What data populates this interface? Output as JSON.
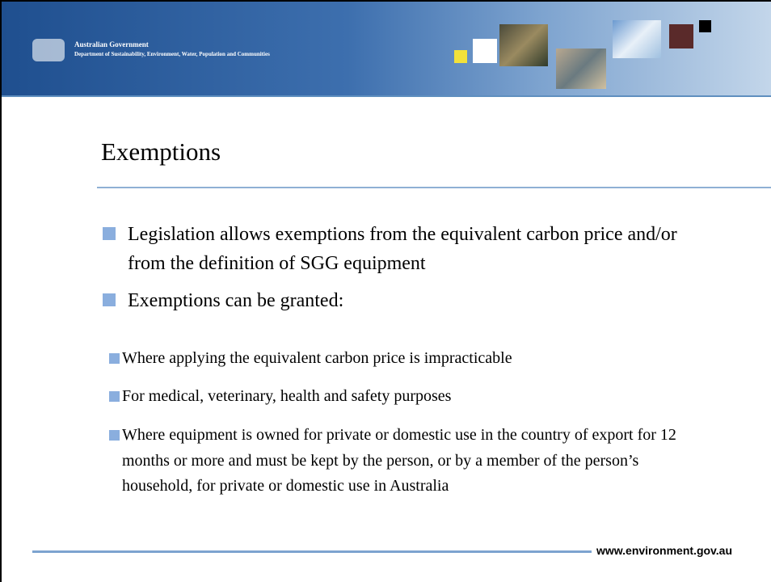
{
  "header": {
    "organisation": "Australian Government",
    "department": "Department of Sustainability, Environment, Water, Population and Communities"
  },
  "title": "Exemptions",
  "bullets": [
    {
      "text": "Legislation allows exemptions from the equivalent carbon price and/or from the definition of SGG equipment"
    },
    {
      "text": "Exemptions can be granted:",
      "sub": [
        "Where applying the equivalent carbon price is impracticable",
        "For medical, veterinary, health and safety purposes",
        "Where equipment is owned for private or domestic use in the country of export for 12 months or more and must be kept by the person, or by a member of the person’s household, for private or domestic use in Australia"
      ]
    }
  ],
  "footer": {
    "url": "www.environment.gov.au"
  }
}
